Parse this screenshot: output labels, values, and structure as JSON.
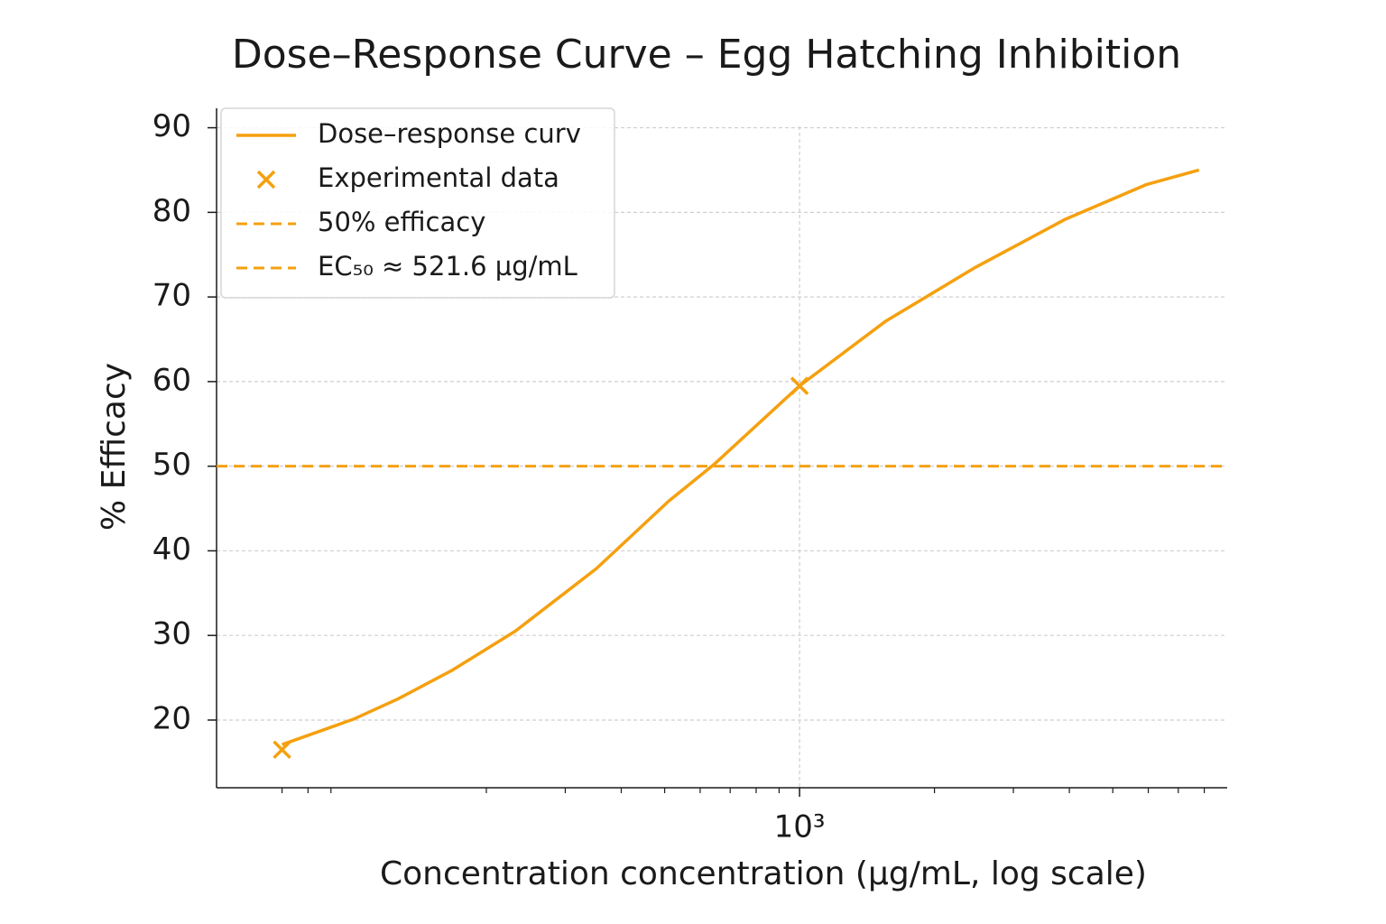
{
  "chart_data": {
    "type": "line",
    "title": "Dose–Response Curve – Egg Hatching Inhibition",
    "xlabel": "Concentration concentration (µg/mL, log scale)",
    "ylabel": "% Efficacy",
    "xscale": "log",
    "xlim": [
      50,
      9000
    ],
    "ylim": [
      12,
      92.3
    ],
    "xticks": [
      {
        "value": 1000,
        "label": "10³"
      }
    ],
    "xminorticks": [
      70,
      80,
      90,
      200,
      300,
      400,
      500,
      600,
      700,
      800,
      900,
      2000,
      3000,
      4000,
      5000,
      6000,
      7000,
      8000
    ],
    "yticks": [
      20,
      30,
      40,
      50,
      60,
      70,
      80,
      90
    ],
    "grid": true,
    "legend": "upper left",
    "series": [
      {
        "name": "Dose–response curv",
        "color": "#f5a00f",
        "style": "line",
        "x": [
          70,
          101,
          127,
          168,
          232,
          352,
          511,
          644,
          1000,
          1553,
          2468,
          3923,
          5952,
          7786
        ],
        "values": [
          17.1,
          20.1,
          22.5,
          25.9,
          30.5,
          37.9,
          45.9,
          50.2,
          59.5,
          67.1,
          73.5,
          79.2,
          83.3,
          85.0
        ]
      },
      {
        "name": "Experimental data",
        "color": "#f5a00f",
        "style": "marker",
        "x": [
          70,
          1000
        ],
        "values": [
          16.5,
          59.5
        ]
      }
    ],
    "hlines": [
      {
        "name": "50% efficacy",
        "color": "#f5a00f",
        "value": 50
      }
    ],
    "legend_extra": [
      {
        "name": "EC₅₀ ≈ 521.6 µg/mL",
        "color": "#f5a00f"
      }
    ]
  }
}
